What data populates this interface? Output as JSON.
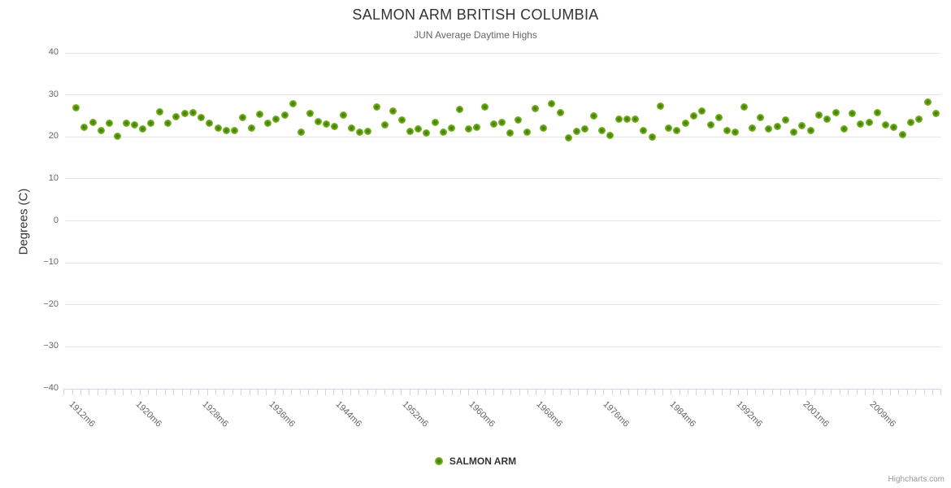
{
  "chart_data": {
    "type": "scatter",
    "title": "SALMON ARM BRITISH COLUMBIA",
    "subtitle": "JUN Average Daytime Highs",
    "ylabel": "Degrees (C)",
    "xlabel": "",
    "ylim": [
      -40,
      40
    ],
    "y_ticks": [
      40,
      30,
      20,
      10,
      0,
      -10,
      -20,
      -30,
      -40
    ],
    "x_tick_labels": [
      "1912m6",
      "1920m6",
      "1928m6",
      "1936m6",
      "1944m6",
      "1952m6",
      "1960m6",
      "1968m6",
      "1976m6",
      "1984m6",
      "1992m6",
      "2001m6",
      "2009m6"
    ],
    "x_label_interval": 8,
    "grid": "horizontal",
    "legend_position": "bottom",
    "credit": "Highcharts.com",
    "series": [
      {
        "name": "SALMON ARM",
        "marker": "circle",
        "color": "#7fba24",
        "values": [
          26.8,
          22.1,
          23.4,
          21.5,
          23.1,
          20.1,
          23.1,
          22.8,
          21.8,
          23.1,
          25.9,
          23.1,
          24.7,
          25.4,
          25.7,
          24.6,
          23.1,
          22.0,
          21.5,
          21.5,
          24.6,
          22.0,
          25.2,
          23.1,
          24.1,
          25.0,
          27.7,
          21.0,
          25.4,
          23.6,
          23.0,
          22.3,
          25.0,
          22.0,
          21.0,
          21.2,
          27.0,
          22.8,
          26.0,
          23.9,
          21.3,
          21.7,
          20.9,
          23.3,
          21.0,
          21.9,
          26.5,
          21.7,
          22.1,
          27.0,
          23.0,
          23.4,
          20.9,
          23.9,
          21.0,
          26.7,
          22.0,
          27.7,
          25.7,
          19.7,
          21.3,
          21.8,
          24.9,
          21.5,
          20.2,
          24.2,
          24.2,
          24.1,
          21.5,
          19.9,
          27.2,
          22.0,
          21.5,
          23.1,
          24.9,
          26.0,
          22.8,
          24.6,
          21.5,
          21.1,
          27.0,
          22.0,
          24.6,
          21.8,
          22.3,
          23.9,
          21.1,
          22.5,
          21.5,
          25.1,
          24.1,
          25.7,
          21.7,
          25.5,
          23.0,
          23.4,
          25.7,
          22.7,
          22.1,
          20.4,
          23.4,
          24.1,
          28.2,
          25.4
        ]
      }
    ]
  },
  "colors": {
    "background": "#ffffff",
    "title": "#333333",
    "subtitle": "#666666",
    "axis_label": "#666666",
    "gridline": "#e6e6e6",
    "axis_line": "#ccd6eb",
    "marker_outer": "#98d045",
    "marker_inner": "#3c7403",
    "legend_text": "#333333",
    "credit": "#999999"
  }
}
